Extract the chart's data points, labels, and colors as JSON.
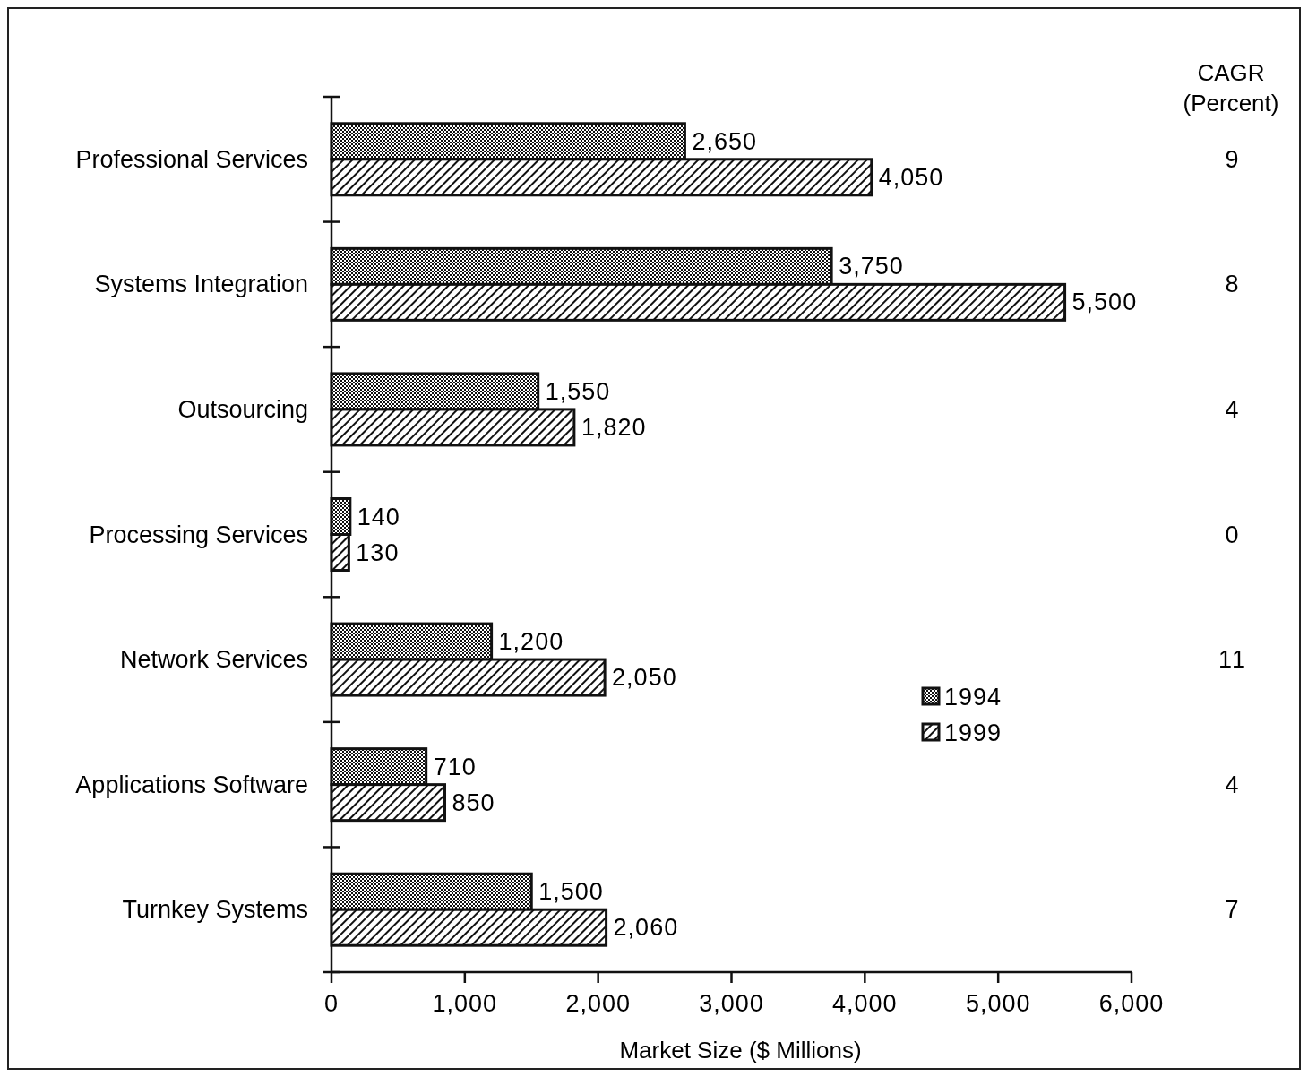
{
  "chart_data": {
    "type": "bar",
    "orientation": "horizontal",
    "xlabel": "Market Size ($ Millions)",
    "categories": [
      "Professional Services",
      "Systems Integration",
      "Outsourcing",
      "Processing Services",
      "Network Services",
      "Applications Software",
      "Turnkey Systems"
    ],
    "series": [
      {
        "name": "1994",
        "color": "#111111",
        "values": [
          2650,
          3750,
          1550,
          140,
          1200,
          710,
          1500
        ],
        "value_labels": [
          "2,650",
          "3,750",
          "1,550",
          "140",
          "1,200",
          "710",
          "1,500"
        ]
      },
      {
        "name": "1999",
        "color": "#111111",
        "values": [
          4050,
          5500,
          1820,
          130,
          2050,
          850,
          2060
        ],
        "value_labels": [
          "4,050",
          "5,500",
          "1,820",
          "130",
          "2,050",
          "850",
          "2,060"
        ]
      }
    ],
    "xlim": [
      0,
      6000
    ],
    "xticks": [
      {
        "value": 0,
        "label": "0"
      },
      {
        "value": 1000,
        "label": "1,000"
      },
      {
        "value": 2000,
        "label": "2,000"
      },
      {
        "value": 3000,
        "label": "3,000"
      },
      {
        "value": 4000,
        "label": "4,000"
      },
      {
        "value": 5000,
        "label": "5,000"
      },
      {
        "value": 6000,
        "label": "6,000"
      }
    ],
    "legend": "center right",
    "annotations": [
      "CAGR\n(Percent)",
      "9",
      "8",
      "4",
      "0",
      "11",
      "4",
      "7"
    ]
  }
}
